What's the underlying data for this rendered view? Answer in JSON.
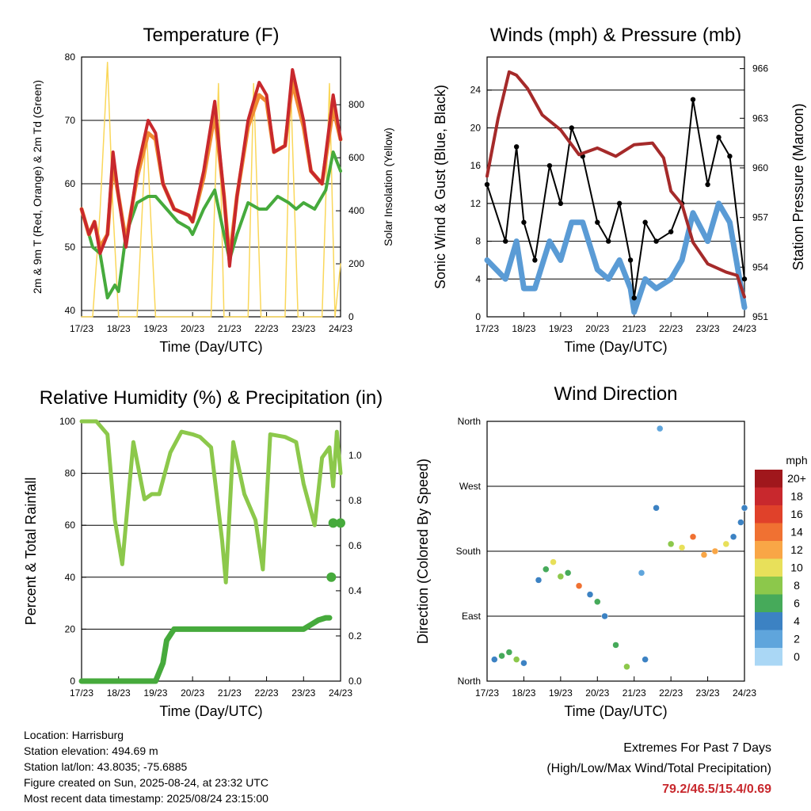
{
  "chart_data": [
    {
      "type": "line",
      "title": "Temperature (F)",
      "xlabel": "Time (Day/UTC)",
      "ylabel": "2m & 9m T (Red, Orange) & 2m Td (Green)",
      "y2label": "Solar Insolation (Yellow)",
      "x_ticks": [
        "17/23",
        "18/23",
        "19/23",
        "20/23",
        "21/23",
        "22/23",
        "23/23",
        "24/23"
      ],
      "ylim": [
        39,
        80
      ],
      "y_ticks": [
        40,
        50,
        60,
        70,
        80
      ],
      "y2lim": [
        0,
        980
      ],
      "y2_ticks": [
        0,
        200,
        400,
        600,
        800
      ],
      "series": [
        {
          "name": "2m T",
          "color": "#c8282d",
          "x": [
            0,
            0.2,
            0.35,
            0.5,
            0.7,
            0.85,
            1.0,
            1.2,
            1.5,
            1.8,
            2.0,
            2.2,
            2.5,
            2.9,
            3.0,
            3.3,
            3.6,
            3.85,
            4.0,
            4.2,
            4.5,
            4.8,
            5.0,
            5.2,
            5.5,
            5.7,
            6.0,
            6.2,
            6.5,
            6.8,
            7.0
          ],
          "y": [
            56,
            52,
            54,
            49,
            52,
            65,
            58,
            50,
            62,
            70,
            68,
            60,
            56,
            55,
            54,
            62,
            73,
            58,
            47,
            58,
            70,
            76,
            74,
            65,
            66,
            78,
            70,
            62,
            60,
            74,
            67
          ]
        },
        {
          "name": "9m T",
          "color": "#f08c32",
          "x": [
            0,
            0.2,
            0.35,
            0.5,
            0.7,
            0.85,
            1.0,
            1.2,
            1.5,
            1.8,
            2.0,
            2.2,
            2.5,
            2.9,
            3.0,
            3.3,
            3.6,
            3.85,
            4.0,
            4.2,
            4.5,
            4.8,
            5.0,
            5.2,
            5.5,
            5.7,
            6.0,
            6.2,
            6.5,
            6.8,
            7.0
          ],
          "y": [
            56,
            52,
            54,
            50,
            52,
            63,
            58,
            51,
            61,
            68,
            67,
            60,
            56,
            55,
            54,
            61,
            71,
            58,
            48,
            58,
            69,
            74,
            73,
            65,
            66,
            76,
            69,
            62,
            60,
            72,
            67
          ]
        },
        {
          "name": "2m Td",
          "color": "#46aa3c",
          "x": [
            0,
            0.3,
            0.5,
            0.7,
            0.9,
            1.0,
            1.2,
            1.5,
            1.8,
            2.0,
            2.3,
            2.6,
            2.9,
            3.0,
            3.3,
            3.6,
            3.85,
            4.0,
            4.2,
            4.5,
            4.8,
            5.0,
            5.3,
            5.6,
            5.8,
            6.0,
            6.3,
            6.6,
            6.8,
            7.0
          ],
          "y": [
            56,
            50,
            49,
            42,
            44,
            43,
            52,
            57,
            58,
            58,
            56,
            54,
            53,
            52,
            56,
            59,
            52,
            48,
            52,
            57,
            56,
            56,
            58,
            57,
            56,
            57,
            56,
            59,
            65,
            62
          ]
        },
        {
          "name": "Solar Insolation",
          "color": "#fad75a",
          "axis": "y2",
          "x": [
            0,
            0.3,
            0.5,
            0.7,
            0.85,
            1.0,
            1.5,
            1.75,
            2.0,
            2.5,
            3.0,
            3.5,
            3.7,
            3.85,
            4.1,
            4.5,
            4.65,
            4.85,
            5.0,
            5.5,
            5.65,
            5.85,
            6.0,
            6.5,
            6.7,
            6.85,
            7.0
          ],
          "y": [
            0,
            0,
            400,
            960,
            400,
            0,
            0,
            720,
            0,
            0,
            0,
            0,
            880,
            0,
            0,
            0,
            880,
            0,
            0,
            0,
            880,
            0,
            0,
            0,
            880,
            0,
            200
          ]
        }
      ]
    },
    {
      "type": "scatter",
      "title": "Winds (mph) & Pressure (mb)",
      "xlabel": "Time (Day/UTC)",
      "ylabel": "Sonic Wind & Gust (Blue, Black)",
      "y2label": "Station Pressure (Maroon)",
      "x_ticks": [
        "17/23",
        "18/23",
        "19/23",
        "20/23",
        "21/23",
        "22/23",
        "23/23",
        "24/23"
      ],
      "ylim": [
        0,
        27.5
      ],
      "y_ticks": [
        0,
        4,
        8,
        12,
        16,
        20,
        24
      ],
      "y2lim": [
        951,
        966.7
      ],
      "y2_ticks": [
        951,
        954,
        957,
        960,
        963,
        966
      ],
      "series": [
        {
          "name": "Gust",
          "color": "#000000",
          "x": [
            0,
            0.5,
            0.8,
            1.0,
            1.3,
            1.7,
            2.0,
            2.3,
            2.6,
            3.0,
            3.3,
            3.6,
            3.9,
            4.0,
            4.3,
            4.6,
            5.0,
            5.3,
            5.6,
            6.0,
            6.3,
            6.6,
            7.0
          ],
          "y": [
            14,
            8,
            18,
            10,
            6,
            16,
            12,
            20,
            17,
            10,
            8,
            12,
            6,
            2,
            10,
            8,
            9,
            12,
            23,
            14,
            19,
            17,
            4
          ]
        },
        {
          "name": "Wind",
          "color": "#5a9bd5",
          "x": [
            0,
            0.5,
            0.8,
            1.0,
            1.3,
            1.7,
            2.0,
            2.3,
            2.6,
            3.0,
            3.3,
            3.6,
            3.9,
            4.0,
            4.3,
            4.6,
            5.0,
            5.3,
            5.6,
            6.0,
            6.3,
            6.6,
            7.0
          ],
          "y": [
            6,
            4,
            8,
            3,
            3,
            8,
            6,
            10,
            10,
            5,
            4,
            6,
            3,
            0.5,
            4,
            3,
            4,
            6,
            11,
            8,
            12,
            10,
            1
          ]
        },
        {
          "name": "Pressure",
          "color": "#a52a2a",
          "axis": "y2",
          "x": [
            0,
            0.3,
            0.6,
            0.8,
            1.1,
            1.5,
            2.0,
            2.5,
            3.0,
            3.5,
            4.0,
            4.5,
            4.8,
            5.0,
            5.3,
            5.6,
            6.0,
            6.2,
            6.5,
            6.8,
            7.0
          ],
          "y": [
            959.5,
            963,
            965.8,
            965.6,
            964.8,
            963.2,
            962.3,
            960.8,
            961.2,
            960.7,
            961.4,
            961.5,
            960.6,
            958.6,
            957.8,
            955.5,
            954.2,
            954.0,
            953.7,
            953.5,
            952.2
          ]
        }
      ]
    },
    {
      "type": "line",
      "title": "Relative Humidity (%) & Precipitation (in)",
      "xlabel": "Time (Day/UTC)",
      "ylabel": "Percent & Total Rainfall",
      "x_ticks": [
        "17/23",
        "18/23",
        "19/23",
        "20/23",
        "21/23",
        "22/23",
        "23/23",
        "24/23"
      ],
      "ylim": [
        0,
        100
      ],
      "y_ticks": [
        0,
        20,
        40,
        60,
        80,
        100
      ],
      "y2lim": [
        0,
        1.15
      ],
      "y2_ticks": [
        0.0,
        0.2,
        0.4,
        0.6,
        0.8,
        1.0
      ],
      "series": [
        {
          "name": "Relative Humidity",
          "color": "#8cc84b",
          "x": [
            0,
            0.4,
            0.7,
            0.9,
            1.1,
            1.4,
            1.7,
            1.9,
            2.1,
            2.4,
            2.7,
            3.0,
            3.2,
            3.5,
            3.8,
            3.9,
            4.1,
            4.4,
            4.7,
            4.9,
            5.1,
            5.5,
            5.8,
            6.0,
            6.3,
            6.5,
            6.7,
            6.8,
            6.9,
            7.0
          ],
          "y": [
            100,
            100,
            95,
            62,
            45,
            92,
            70,
            72,
            72,
            88,
            96,
            95,
            94,
            90,
            54,
            38,
            92,
            72,
            62,
            43,
            95,
            94,
            92,
            76,
            60,
            86,
            90,
            75,
            96,
            80
          ]
        },
        {
          "name": "Total Precipitation",
          "color": "#46aa3c",
          "axis": "y2",
          "x": [
            0,
            2.0,
            2.2,
            2.3,
            2.5,
            3.0,
            3.5,
            4.0,
            4.5,
            5.0,
            5.5,
            6.0,
            6.2,
            6.4,
            6.6,
            6.7
          ],
          "y": [
            0,
            0,
            0.08,
            0.18,
            0.23,
            0.23,
            0.23,
            0.23,
            0.23,
            0.23,
            0.23,
            0.23,
            0.25,
            0.27,
            0.28,
            0.28
          ]
        }
      ],
      "points": [
        {
          "x": 6.75,
          "y2": 0.46
        },
        {
          "x": 6.8,
          "y2": 0.7
        },
        {
          "x": 7.0,
          "y2": 0.7
        }
      ]
    },
    {
      "type": "scatter",
      "title": "Wind Direction",
      "xlabel": "Time (Day/UTC)",
      "ylabel": "Direction (Colored By Speed)",
      "x_ticks": [
        "17/23",
        "18/23",
        "19/23",
        "20/23",
        "21/23",
        "22/23",
        "23/23",
        "24/23"
      ],
      "ylim": [
        0,
        360
      ],
      "y_ticks": [
        "North",
        "East",
        "South",
        "West",
        "North"
      ],
      "legend": {
        "title": "mph",
        "labels": [
          "20+",
          "18",
          "16",
          "14",
          "12",
          "10",
          "8",
          "6",
          "4",
          "2",
          "0"
        ],
        "colors": [
          "#a0171c",
          "#c8282d",
          "#e0412a",
          "#f07132",
          "#f9a646",
          "#e8e05a",
          "#8cc84b",
          "#46aa5a",
          "#3c82c3",
          "#5fa5dc",
          "#aad7f5"
        ]
      },
      "points": [
        {
          "x": 0.2,
          "y": 30,
          "s": 4
        },
        {
          "x": 0.4,
          "y": 35,
          "s": 6
        },
        {
          "x": 0.6,
          "y": 40,
          "s": 5
        },
        {
          "x": 0.8,
          "y": 30,
          "s": 8
        },
        {
          "x": 1.0,
          "y": 25,
          "s": 4
        },
        {
          "x": 1.4,
          "y": 140,
          "s": 4
        },
        {
          "x": 1.6,
          "y": 155,
          "s": 6
        },
        {
          "x": 1.8,
          "y": 165,
          "s": 10
        },
        {
          "x": 2.0,
          "y": 145,
          "s": 8
        },
        {
          "x": 2.2,
          "y": 150,
          "s": 6
        },
        {
          "x": 2.5,
          "y": 132,
          "s": 14
        },
        {
          "x": 2.8,
          "y": 120,
          "s": 4
        },
        {
          "x": 3.0,
          "y": 110,
          "s": 6
        },
        {
          "x": 3.2,
          "y": 90,
          "s": 4
        },
        {
          "x": 3.5,
          "y": 50,
          "s": 6
        },
        {
          "x": 3.8,
          "y": 20,
          "s": 8
        },
        {
          "x": 4.2,
          "y": 150,
          "s": 2
        },
        {
          "x": 4.3,
          "y": 30,
          "s": 4
        },
        {
          "x": 4.6,
          "y": 240,
          "s": 4
        },
        {
          "x": 4.7,
          "y": 350,
          "s": 2
        },
        {
          "x": 5.0,
          "y": 190,
          "s": 8
        },
        {
          "x": 5.3,
          "y": 185,
          "s": 10
        },
        {
          "x": 5.6,
          "y": 200,
          "s": 14
        },
        {
          "x": 5.9,
          "y": 175,
          "s": 12
        },
        {
          "x": 6.2,
          "y": 180,
          "s": 12
        },
        {
          "x": 6.5,
          "y": 190,
          "s": 10
        },
        {
          "x": 6.7,
          "y": 200,
          "s": 4
        },
        {
          "x": 6.9,
          "y": 220,
          "s": 4
        },
        {
          "x": 7.0,
          "y": 240,
          "s": 4
        }
      ]
    }
  ],
  "footer": {
    "location": "Location: Harrisburg",
    "elevation": "Station elevation: 494.69 m",
    "latlon": "Station lat/lon: 43.8035; -75.6885",
    "created": "Figure created on Sun, 2025-08-24, at 23:32 UTC",
    "recent": "Most recent data timestamp: 2025/08/24 23:15:00"
  },
  "extremes": {
    "line1": "Extremes For Past 7 Days",
    "line2": "(High/Low/Max Wind/Total Precipitation)",
    "values": "79.2/46.5/15.4/0.69"
  }
}
